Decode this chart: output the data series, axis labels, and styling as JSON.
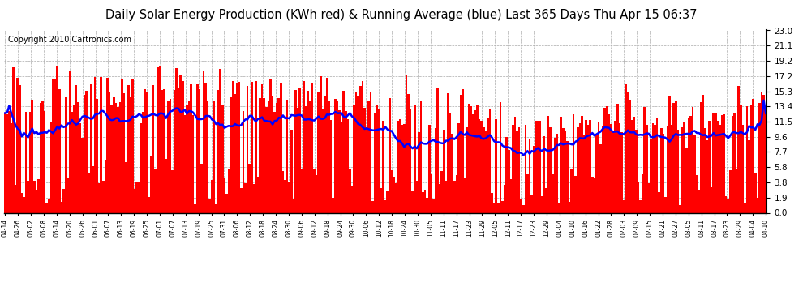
{
  "title": "Daily Solar Energy Production (KWh red) & Running Average (blue) Last 365 Days Thu Apr 15 06:37",
  "copyright": "Copyright 2010 Cartronics.com",
  "yticks": [
    0.0,
    1.9,
    3.8,
    5.8,
    7.7,
    9.6,
    11.5,
    13.4,
    15.3,
    17.2,
    19.2,
    21.1,
    23.0
  ],
  "ymin": 0.0,
  "ymax": 23.0,
  "bar_color": "#ff0000",
  "line_color": "#0000ff",
  "background_color": "#ffffff",
  "grid_color": "#aaaaaa",
  "title_fontsize": 10.5,
  "copyright_fontsize": 7,
  "x_tick_labels": [
    "04-14",
    "04-26",
    "05-02",
    "05-08",
    "05-14",
    "05-20",
    "05-26",
    "06-01",
    "06-07",
    "06-13",
    "06-19",
    "06-25",
    "07-01",
    "07-07",
    "07-13",
    "07-19",
    "07-25",
    "07-31",
    "08-06",
    "08-12",
    "08-18",
    "08-24",
    "08-30",
    "09-06",
    "09-12",
    "09-18",
    "09-24",
    "09-30",
    "10-06",
    "10-12",
    "10-18",
    "10-24",
    "10-30",
    "11-05",
    "11-11",
    "11-17",
    "11-23",
    "11-29",
    "12-05",
    "12-11",
    "12-17",
    "12-23",
    "12-29",
    "01-04",
    "01-10",
    "01-16",
    "01-22",
    "01-28",
    "02-03",
    "02-09",
    "02-15",
    "02-21",
    "02-27",
    "03-05",
    "03-11",
    "03-17",
    "03-23",
    "03-29",
    "04-04",
    "04-10"
  ]
}
